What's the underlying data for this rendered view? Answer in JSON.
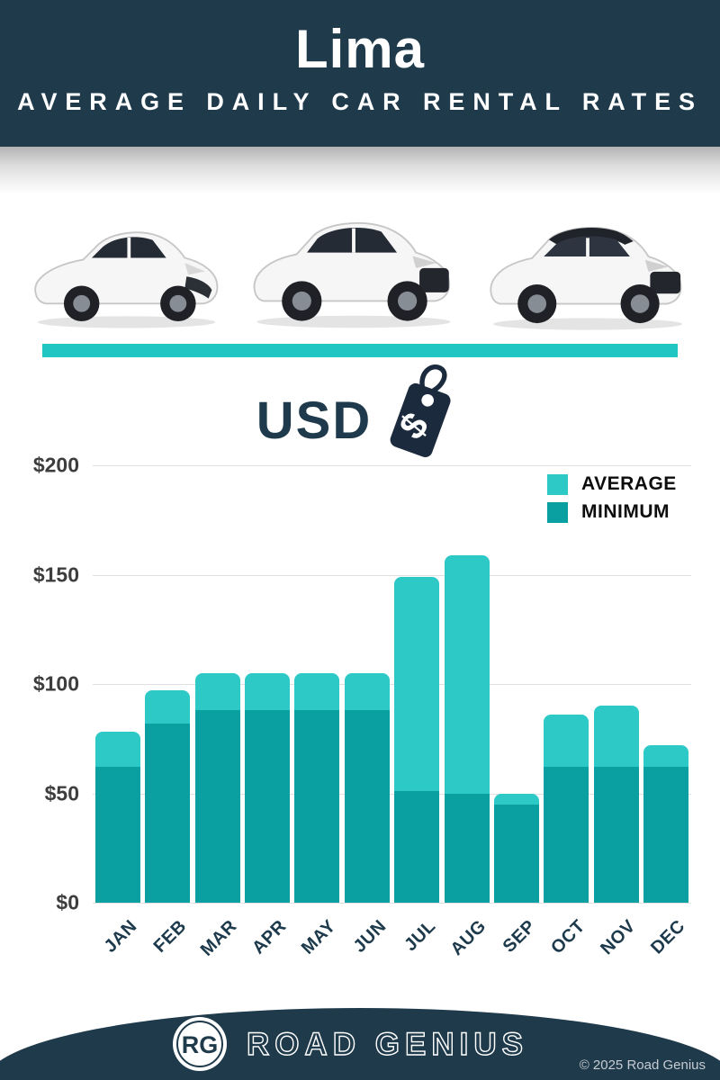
{
  "header": {
    "title": "Lima",
    "subtitle": "AVERAGE DAILY CAR RENTAL RATES"
  },
  "hero": {
    "cars": [
      "white-hatchback",
      "white-suv",
      "white-suv-black-roof"
    ]
  },
  "currency": {
    "label": "USD",
    "icon": "price-tag-dollar-icon",
    "dollar_glyph": "$"
  },
  "chart_data": {
    "type": "bar",
    "title": "USD",
    "categories": [
      "JAN",
      "FEB",
      "MAR",
      "APR",
      "MAY",
      "JUN",
      "JUL",
      "AUG",
      "SEP",
      "OCT",
      "NOV",
      "DEC"
    ],
    "series": [
      {
        "name": "AVERAGE",
        "color": "#2cc9c7",
        "values": [
          78,
          97,
          105,
          105,
          105,
          105,
          149,
          159,
          50,
          86,
          90,
          72
        ]
      },
      {
        "name": "MINIMUM",
        "color": "#0a9fa1",
        "values": [
          62,
          82,
          88,
          88,
          88,
          88,
          51,
          50,
          45,
          62,
          62,
          62
        ]
      }
    ],
    "bar_mode": "overlay",
    "ylim": [
      0,
      200
    ],
    "yticks": [
      "$0",
      "$50",
      "$100",
      "$150",
      "$200"
    ],
    "grid": true,
    "legend_position": "top-right"
  },
  "footer": {
    "logo_initials": "RG",
    "brand": "ROAD GENIUS",
    "copyright": "© 2025 Road Genius"
  },
  "colors": {
    "header_bg": "#1f3a4b",
    "accent_teal": "#20c6c1",
    "average_bar": "#2cc9c7",
    "minimum_bar": "#0a9fa1",
    "title_text": "#ffffff",
    "axis_text": "#3d3d3d",
    "month_text": "#1d3a4c"
  }
}
